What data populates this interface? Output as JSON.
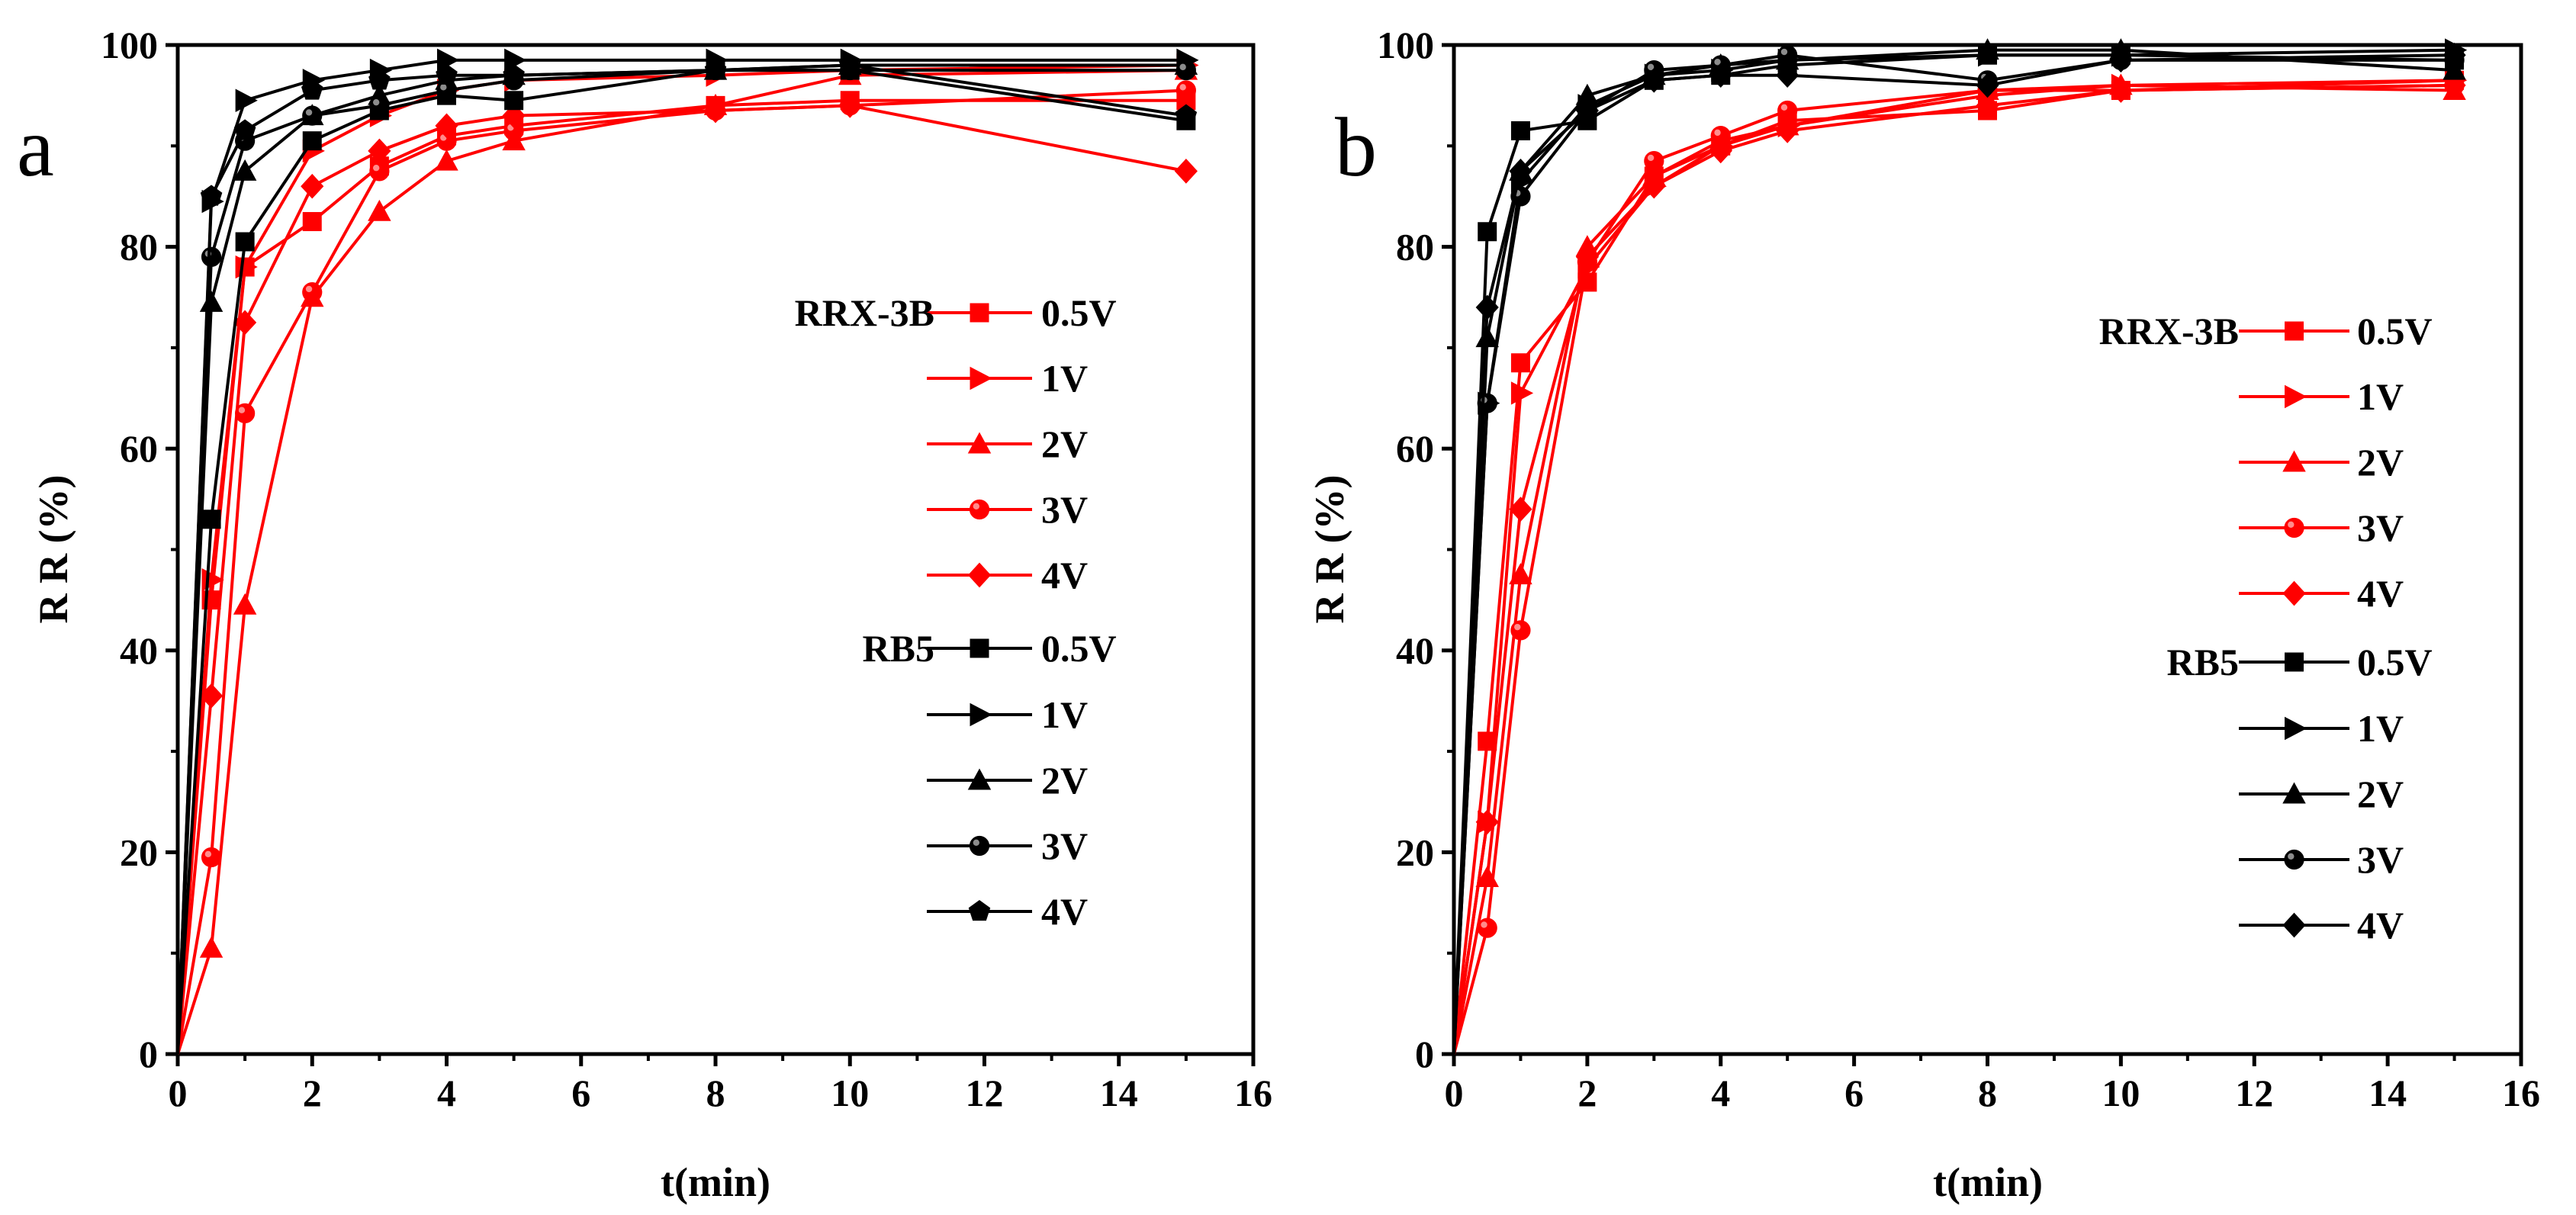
{
  "chart_data": [
    {
      "type": "line",
      "panel_label": "a",
      "xlabel": "t(min)",
      "ylabel": "R R (%)",
      "xlim": [
        0,
        16
      ],
      "ylim": [
        0,
        100
      ],
      "xticks": [
        0,
        2,
        4,
        6,
        8,
        10,
        12,
        14,
        16
      ],
      "yticks": [
        0,
        20,
        40,
        60,
        80,
        100
      ],
      "x": [
        0,
        0.5,
        1,
        2,
        3,
        4,
        5,
        8,
        10,
        15
      ],
      "legend_groups": [
        {
          "label": "RRX-3B",
          "color": "#ff0000"
        },
        {
          "label": "RB5",
          "color": "#000000"
        }
      ],
      "series": [
        {
          "group": "RRX-3B",
          "name": "0.5V",
          "marker": "square",
          "color": "#ff0000",
          "values": [
            0,
            45,
            78,
            82.5,
            88,
            91,
            92,
            94,
            94.5,
            94.5
          ]
        },
        {
          "group": "RRX-3B",
          "name": "1V",
          "marker": "triangle-right",
          "color": "#ff0000",
          "values": [
            0,
            47,
            78,
            89.5,
            93,
            95.5,
            96.5,
            97,
            97.5,
            98
          ]
        },
        {
          "group": "RRX-3B",
          "name": "2V",
          "marker": "triangle-up",
          "color": "#ff0000",
          "values": [
            0,
            10.5,
            44.5,
            75,
            83.5,
            88.5,
            90.5,
            94,
            97,
            97.5
          ]
        },
        {
          "group": "RRX-3B",
          "name": "3V",
          "marker": "circle",
          "color": "#ff0000",
          "values": [
            0,
            19.5,
            63.5,
            75.5,
            87.5,
            90.5,
            91.5,
            93.5,
            94,
            95.5
          ]
        },
        {
          "group": "RRX-3B",
          "name": "4V",
          "marker": "diamond",
          "color": "#ff0000",
          "values": [
            0,
            35.5,
            72.5,
            86,
            89.5,
            92,
            93,
            93.5,
            94,
            87.5
          ]
        },
        {
          "group": "RB5",
          "name": "0.5V",
          "marker": "square",
          "color": "#000000",
          "values": [
            0,
            53,
            80.5,
            90.5,
            93.5,
            95,
            94.5,
            97.5,
            97.5,
            92.5
          ]
        },
        {
          "group": "RB5",
          "name": "1V",
          "marker": "triangle-right",
          "color": "#000000",
          "values": [
            0,
            84.5,
            94.5,
            96.5,
            97.5,
            98.5,
            98.5,
            98.5,
            98.5,
            98.5
          ]
        },
        {
          "group": "RB5",
          "name": "2V",
          "marker": "triangle-up",
          "color": "#000000",
          "values": [
            0,
            74.5,
            87.5,
            93,
            95,
            96.5,
            97,
            97.5,
            98,
            98
          ]
        },
        {
          "group": "RB5",
          "name": "3V",
          "marker": "circle",
          "color": "#000000",
          "values": [
            0,
            79,
            90.5,
            93,
            94,
            95.5,
            96.5,
            97.5,
            97.5,
            97.5
          ]
        },
        {
          "group": "RB5",
          "name": "4V",
          "marker": "pentagon",
          "color": "#000000",
          "values": [
            0,
            85,
            91.5,
            95.5,
            96.5,
            97,
            97,
            97.5,
            98,
            93
          ]
        }
      ]
    },
    {
      "type": "line",
      "panel_label": "b",
      "xlabel": "t(min)",
      "ylabel": "R R (%)",
      "xlim": [
        0,
        16
      ],
      "ylim": [
        0,
        100
      ],
      "xticks": [
        0,
        2,
        4,
        6,
        8,
        10,
        12,
        14,
        16
      ],
      "yticks": [
        0,
        20,
        40,
        60,
        80,
        100
      ],
      "x": [
        0,
        0.5,
        1,
        2,
        3,
        4,
        5,
        8,
        10,
        15
      ],
      "legend_groups": [
        {
          "label": "RRX-3B",
          "color": "#ff0000"
        },
        {
          "label": "RB5",
          "color": "#000000"
        }
      ],
      "series": [
        {
          "group": "RRX-3B",
          "name": "0.5V",
          "marker": "square",
          "color": "#ff0000",
          "values": [
            0,
            31,
            68.5,
            76.5,
            87,
            90,
            92.5,
            93.5,
            95.5,
            96.5
          ]
        },
        {
          "group": "RRX-3B",
          "name": "1V",
          "marker": "triangle-right",
          "color": "#ff0000",
          "values": [
            0,
            23,
            65.5,
            78,
            86,
            90,
            92,
            95,
            96,
            96.5
          ]
        },
        {
          "group": "RRX-3B",
          "name": "2V",
          "marker": "triangle-up",
          "color": "#ff0000",
          "values": [
            0,
            17.5,
            47.5,
            80,
            87,
            90.5,
            92,
            95.5,
            96,
            95.5
          ]
        },
        {
          "group": "RRX-3B",
          "name": "3V",
          "marker": "circle",
          "color": "#ff0000",
          "values": [
            0,
            12.5,
            42,
            78.5,
            88.5,
            91,
            93.5,
            95.5,
            95.5,
            96
          ]
        },
        {
          "group": "RRX-3B",
          "name": "4V",
          "marker": "diamond",
          "color": "#ff0000",
          "values": [
            0,
            23,
            54,
            79,
            86,
            89.5,
            91.5,
            94,
            95.5,
            96
          ]
        },
        {
          "group": "RB5",
          "name": "0.5V",
          "marker": "square",
          "color": "#000000",
          "values": [
            0,
            81.5,
            91.5,
            92.5,
            96.5,
            97,
            98,
            99,
            99,
            98.5
          ]
        },
        {
          "group": "RB5",
          "name": "1V",
          "marker": "triangle-right",
          "color": "#000000",
          "values": [
            0,
            64.5,
            86.5,
            94,
            97,
            97.5,
            98.5,
            99,
            99,
            99.5
          ]
        },
        {
          "group": "RB5",
          "name": "2V",
          "marker": "triangle-up",
          "color": "#000000",
          "values": [
            0,
            71,
            87.5,
            95,
            97,
            98,
            98.5,
            99.5,
            99.5,
            97.5
          ]
        },
        {
          "group": "RB5",
          "name": "3V",
          "marker": "circle",
          "color": "#000000",
          "values": [
            0,
            64.5,
            85,
            93.5,
            97.5,
            98,
            99,
            96.5,
            98.5,
            98.5
          ]
        },
        {
          "group": "RB5",
          "name": "4V",
          "marker": "diamond",
          "color": "#000000",
          "values": [
            0,
            74,
            87.5,
            93.5,
            96.5,
            97,
            97,
            96,
            98.5,
            99
          ]
        }
      ]
    }
  ]
}
